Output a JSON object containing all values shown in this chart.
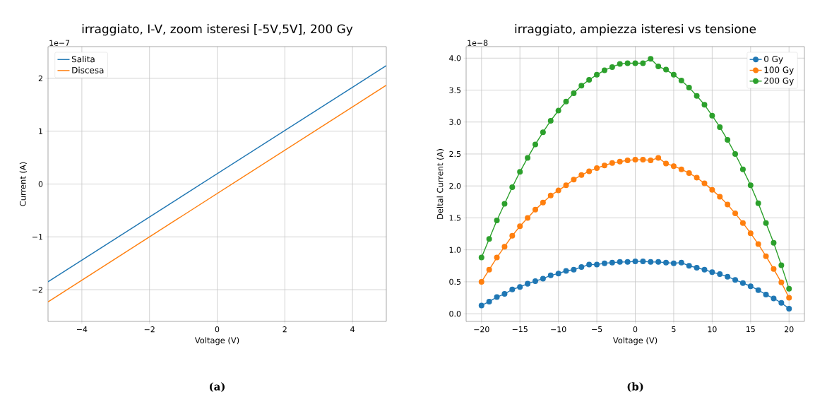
{
  "chart_data": [
    {
      "type": "line",
      "title": "irraggiato, I-V, zoom isteresi [-5V,5V], 200 Gy",
      "xlabel": "Voltage (V)",
      "ylabel": "Current (A)",
      "x": [
        -5,
        5
      ],
      "series": [
        {
          "name": "Salita",
          "color": "#1f77b4",
          "values": [
            -1.85,
            2.24
          ]
        },
        {
          "name": "Discesa",
          "color": "#ff7f0e",
          "values": [
            -2.23,
            1.87
          ]
        }
      ],
      "xlim": [
        -5,
        5
      ],
      "ylim": [
        -2.6,
        2.6
      ],
      "xticks": [
        {
          "value": -4,
          "label": "−4"
        },
        {
          "value": -2,
          "label": "−2"
        },
        0,
        2,
        4
      ],
      "yticks": [
        {
          "value": -2,
          "label": "−2"
        },
        {
          "value": -1,
          "label": "−1"
        },
        0,
        1,
        2
      ],
      "grid": true,
      "legend": "top left",
      "annotations": [
        "1e−7",
        "(a)"
      ]
    },
    {
      "type": "line",
      "title": "irraggiato, ampiezza isteresi vs tensione",
      "xlabel": "Voltage (V)",
      "ylabel": "Deltal Current (A)",
      "x": [
        -20,
        -19,
        -18,
        -17,
        -16,
        -15,
        -14,
        -13,
        -12,
        -11,
        -10,
        -9,
        -8,
        -7,
        -6,
        -5,
        -4,
        -3,
        -2,
        -1,
        0,
        1,
        2,
        3,
        4,
        5,
        6,
        7,
        8,
        9,
        10,
        11,
        12,
        13,
        14,
        15,
        16,
        17,
        18,
        19,
        20
      ],
      "series": [
        {
          "name": "0 Gy",
          "color": "#1f77b4",
          "values": [
            0.13,
            0.19,
            0.26,
            0.31,
            0.38,
            0.42,
            0.47,
            0.51,
            0.55,
            0.6,
            0.63,
            0.67,
            0.69,
            0.73,
            0.77,
            0.77,
            0.79,
            0.8,
            0.81,
            0.81,
            0.82,
            0.82,
            0.81,
            0.81,
            0.8,
            0.79,
            0.8,
            0.75,
            0.72,
            0.69,
            0.65,
            0.62,
            0.58,
            0.53,
            0.48,
            0.43,
            0.37,
            0.3,
            0.24,
            0.17,
            0.08
          ]
        },
        {
          "name": "100 Gy",
          "color": "#ff7f0e",
          "values": [
            0.5,
            0.69,
            0.88,
            1.05,
            1.22,
            1.37,
            1.5,
            1.63,
            1.74,
            1.85,
            1.93,
            2.01,
            2.1,
            2.17,
            2.23,
            2.28,
            2.32,
            2.36,
            2.38,
            2.4,
            2.41,
            2.41,
            2.4,
            2.44,
            2.35,
            2.31,
            2.26,
            2.2,
            2.13,
            2.04,
            1.94,
            1.83,
            1.71,
            1.57,
            1.42,
            1.26,
            1.09,
            0.9,
            0.7,
            0.49,
            0.25
          ]
        },
        {
          "name": "200 Gy",
          "color": "#2ca02c",
          "values": [
            0.88,
            1.17,
            1.46,
            1.72,
            1.98,
            2.22,
            2.44,
            2.65,
            2.84,
            3.02,
            3.18,
            3.32,
            3.45,
            3.57,
            3.66,
            3.74,
            3.81,
            3.86,
            3.91,
            3.92,
            3.92,
            3.92,
            3.99,
            3.87,
            3.82,
            3.74,
            3.65,
            3.54,
            3.41,
            3.27,
            3.1,
            2.92,
            2.72,
            2.5,
            2.26,
            2.01,
            1.73,
            1.42,
            1.11,
            0.76,
            0.39
          ]
        }
      ],
      "xlim": [
        -22,
        22
      ],
      "ylim": [
        -0.12,
        4.18
      ],
      "xticks": [
        {
          "value": -20,
          "label": "−20"
        },
        {
          "value": -15,
          "label": "−15"
        },
        {
          "value": -10,
          "label": "−10"
        },
        {
          "value": -5,
          "label": "−5"
        },
        0,
        5,
        10,
        15,
        20
      ],
      "yticks": [
        {
          "value": 0,
          "label": "0.0"
        },
        {
          "value": 0.5,
          "label": "0.5"
        },
        {
          "value": 1,
          "label": "1.0"
        },
        {
          "value": 1.5,
          "label": "1.5"
        },
        {
          "value": 2,
          "label": "2.0"
        },
        {
          "value": 2.5,
          "label": "2.5"
        },
        {
          "value": 3,
          "label": "3.0"
        },
        {
          "value": 3.5,
          "label": "3.5"
        },
        {
          "value": 4,
          "label": "4.0"
        }
      ],
      "grid": true,
      "legend": "top right",
      "marker": "circle",
      "annotations": [
        "1e−8",
        "(b)"
      ]
    }
  ]
}
